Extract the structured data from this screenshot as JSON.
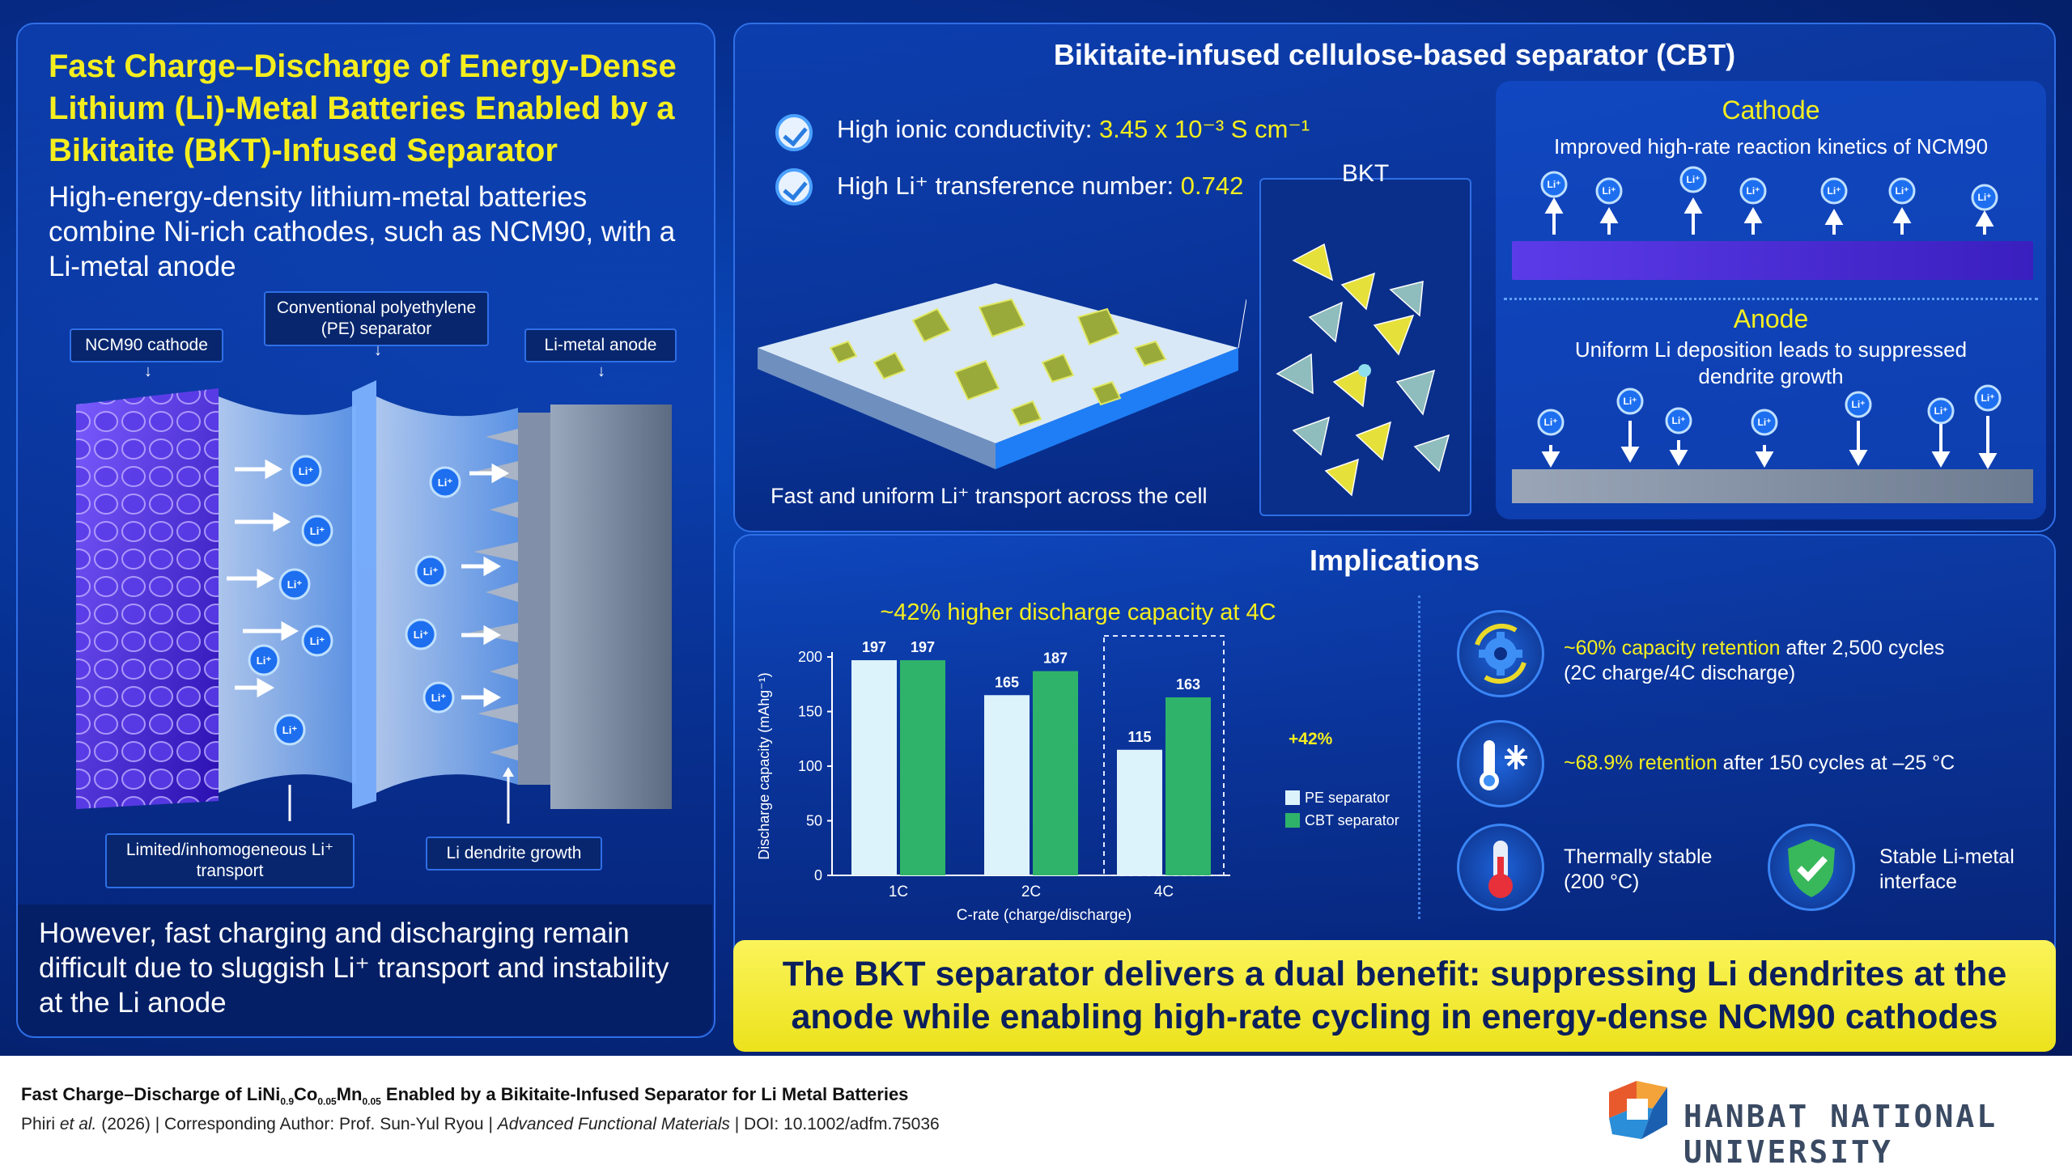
{
  "left": {
    "title": "Fast Charge–Discharge of Energy-Dense Lithium (Li)-Metal Batteries Enabled by a Bikitaite (BKT)-Infused Separator",
    "intro": "High-energy-density lithium-metal batteries combine Ni-rich cathodes, such as NCM90, with a Li-metal anode",
    "labels": {
      "cathode": "NCM90 cathode",
      "pe_separator": "Conventional polyethylene (PE) separator",
      "anode": "Li-metal anode",
      "limited_transport": "Limited/inhomogeneous Li⁺ transport",
      "dendrite": "Li dendrite growth"
    },
    "ion": "Li⁺",
    "bottom_text": "However, fast charging and discharging remain difficult due to sluggish Li⁺ transport and instability at the Li anode"
  },
  "cbt": {
    "header": "Bikitaite-infused cellulose-based separator (CBT)",
    "prop1_label": "High ionic conductivity: ",
    "prop1_value": "3.45 x 10⁻³ S cm⁻¹",
    "prop2_label": "High Li⁺ transference number: ",
    "prop2_value": "0.742",
    "bkt_label": "BKT",
    "transport_caption": "Fast and uniform Li⁺ transport across the cell",
    "cathode_title": "Cathode",
    "cathode_desc": "Improved high-rate reaction kinetics of NCM90",
    "anode_title": "Anode",
    "anode_desc": "Uniform Li deposition leads to suppressed dendrite growth"
  },
  "implications": {
    "header": "Implications",
    "retention1_highlight": "~60% capacity retention",
    "retention1_rest": " after 2,500 cycles",
    "retention1_line2": "(2C charge/4C discharge)",
    "retention2_highlight": "~68.9% retention",
    "retention2_rest": " after 150 cycles at –25 °C",
    "thermal_line1": "Thermally stable",
    "thermal_line2": "(200 °C)",
    "interface_line1": "Stable Li-metal",
    "interface_line2": "interface"
  },
  "chart_data": {
    "type": "bar",
    "title": "~42% higher discharge capacity at 4C",
    "categories": [
      "1C",
      "2C",
      "4C"
    ],
    "series": [
      {
        "name": "PE separator",
        "values": [
          197,
          165,
          115
        ],
        "color": "#ddf3fb"
      },
      {
        "name": "CBT separator",
        "values": [
          197,
          187,
          163
        ],
        "color": "#2fb36a"
      }
    ],
    "xlabel": "C-rate (charge/discharge)",
    "ylabel": "Discharge capacity (mAhg⁻¹)",
    "ylim": [
      0,
      200
    ],
    "yticks": [
      0,
      50,
      100,
      150,
      200
    ],
    "annotation": "+42%",
    "legend": "bottom-right"
  },
  "banner": "The BKT separator delivers a dual benefit: suppressing Li dendrites at the anode while enabling high-rate cycling in energy-dense NCM90 cathodes",
  "footer": {
    "title_pre": "Fast Charge–Discharge of LiNi",
    "sub1": "0.9",
    "co": "Co",
    "sub2": "0.05",
    "mn": "Mn",
    "sub3": "0.05",
    "title_post": " Enabled by a Bikitaite-Infused Separator for Li Metal Batteries",
    "ref_authors": "Phiri ",
    "ref_etal": "et al.",
    "ref_mid": " (2026) | Corresponding Author: Prof. Sun-Yul Ryou | ",
    "ref_journal": "Advanced Functional Materials",
    "ref_doi": " | DOI: 10.1002/adfm.75036",
    "university": "HANBAT NATIONAL UNIVERSITY"
  },
  "colors": {
    "accent_yellow": "#f5ee1f",
    "navy": "#062d8c",
    "pe_bar": "#ddf3fb",
    "cbt_bar": "#2fb36a"
  }
}
